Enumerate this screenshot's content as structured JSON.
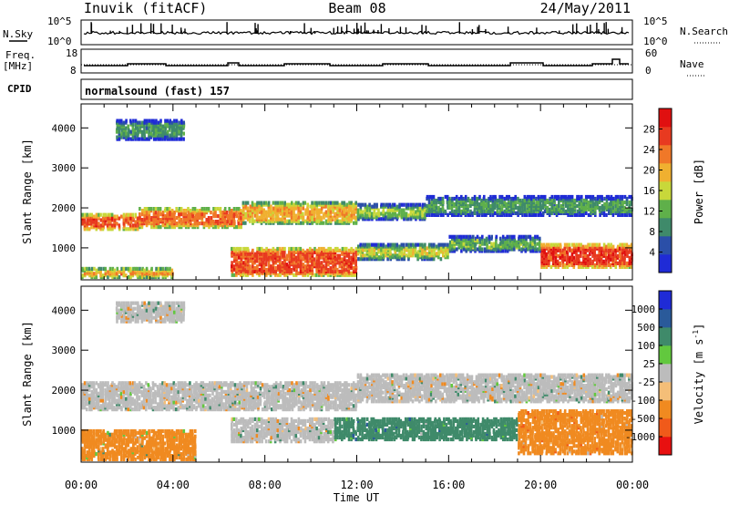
{
  "header": {
    "station": "Inuvik (fitACF)",
    "beam": "Beam 08",
    "date": "24/May/2011"
  },
  "summary": {
    "nsky_label": "N.Sky",
    "nsky_ticks": [
      "10^5",
      "10^0"
    ],
    "nsearch_label": "N.Search",
    "nsearch_ticks": [
      "10^5",
      "10^0"
    ],
    "freq_label": "Freq.",
    "freq_unit": "[MHz]",
    "freq_ticks": [
      "18",
      "8"
    ],
    "nave_label": "Nave",
    "nave_ticks": [
      "60",
      "0"
    ],
    "cpid_label": "CPID",
    "cpid_text": "normalsound (fast) 157"
  },
  "colors": {
    "power_scale": [
      "#1f2bd6",
      "#2b4fa8",
      "#3f8a6a",
      "#5fb04a",
      "#c8d83a",
      "#f0b030",
      "#f07828",
      "#e83a20",
      "#e01010"
    ],
    "velocity_scale": [
      "#e81010",
      "#f05a1a",
      "#f08a20",
      "#f4be78",
      "#bcbcbc",
      "#62c83e",
      "#3f8a6a",
      "#2a5a9a",
      "#1f2bd6"
    ],
    "ground_scatter": "#bcbcbc"
  },
  "chart_data": [
    {
      "type": "heatmap",
      "title": "Power",
      "xlabel": "",
      "ylabel": "Slant Range [km]",
      "xlim": [
        "00:00",
        "00:00"
      ],
      "ylim": [
        200,
        4600
      ],
      "xticks": [
        "00:00",
        "04:00",
        "08:00",
        "12:00",
        "16:00",
        "20:00",
        "00:00"
      ],
      "yticks": [
        1000,
        2000,
        3000,
        4000
      ],
      "colorbar": {
        "label": "Power [dB]",
        "range": [
          0,
          32
        ],
        "ticks": [
          4,
          8,
          12,
          16,
          20,
          24,
          28
        ]
      },
      "bands": [
        {
          "t_start": 0.0,
          "t_end": 2.5,
          "range_low": 1450,
          "range_high": 1850,
          "db": 26
        },
        {
          "t_start": 2.5,
          "t_end": 7.0,
          "range_low": 1500,
          "range_high": 2000,
          "db": 24
        },
        {
          "t_start": 7.0,
          "t_end": 12.0,
          "range_low": 1600,
          "range_high": 2150,
          "db": 20
        },
        {
          "t_start": 12.0,
          "t_end": 15.0,
          "range_low": 1700,
          "range_high": 2100,
          "db": 14
        },
        {
          "t_start": 15.0,
          "t_end": 24.0,
          "range_low": 1800,
          "range_high": 2300,
          "db": 10
        },
        {
          "t_start": 0.0,
          "t_end": 4.0,
          "range_low": 250,
          "range_high": 500,
          "db": 22
        },
        {
          "t_start": 6.5,
          "t_end": 12.0,
          "range_low": 300,
          "range_high": 1000,
          "db": 26
        },
        {
          "t_start": 12.0,
          "t_end": 16.0,
          "range_low": 700,
          "range_high": 1100,
          "db": 16
        },
        {
          "t_start": 16.0,
          "t_end": 20.0,
          "range_low": 900,
          "range_high": 1300,
          "db": 12
        },
        {
          "t_start": 20.0,
          "t_end": 24.0,
          "range_low": 500,
          "range_high": 1100,
          "db": 27
        },
        {
          "t_start": 1.5,
          "t_end": 4.5,
          "range_low": 3700,
          "range_high": 4200,
          "db": 10
        }
      ]
    },
    {
      "type": "heatmap",
      "title": "Velocity",
      "xlabel": "Time UT",
      "ylabel": "Slant Range [km]",
      "xlim": [
        "00:00",
        "00:00"
      ],
      "ylim": [
        200,
        4600
      ],
      "xticks": [
        "00:00",
        "04:00",
        "08:00",
        "12:00",
        "16:00",
        "20:00",
        "00:00"
      ],
      "yticks": [
        1000,
        2000,
        3000,
        4000
      ],
      "colorbar": {
        "label": "Velocity [m s^-1]",
        "ticks": [
          1000,
          500,
          100,
          25,
          -25,
          -100,
          -500,
          -1000
        ]
      },
      "bands": [
        {
          "t_start": 0.0,
          "t_end": 12.0,
          "range_low": 1500,
          "range_high": 2200,
          "velocity": 0
        },
        {
          "t_start": 12.0,
          "t_end": 24.0,
          "range_low": 1700,
          "range_high": 2400,
          "velocity": 0
        },
        {
          "t_start": 0.0,
          "t_end": 5.0,
          "range_low": 250,
          "range_high": 1000,
          "velocity": -150
        },
        {
          "t_start": 6.5,
          "t_end": 11.0,
          "range_low": 700,
          "range_high": 1300,
          "velocity": 20
        },
        {
          "t_start": 11.0,
          "t_end": 19.0,
          "range_low": 750,
          "range_high": 1300,
          "velocity": 300
        },
        {
          "t_start": 19.0,
          "t_end": 24.0,
          "range_low": 400,
          "range_high": 1500,
          "velocity": -300
        },
        {
          "t_start": 1.5,
          "t_end": 4.5,
          "range_low": 3700,
          "range_high": 4200,
          "velocity": 0
        }
      ]
    }
  ]
}
